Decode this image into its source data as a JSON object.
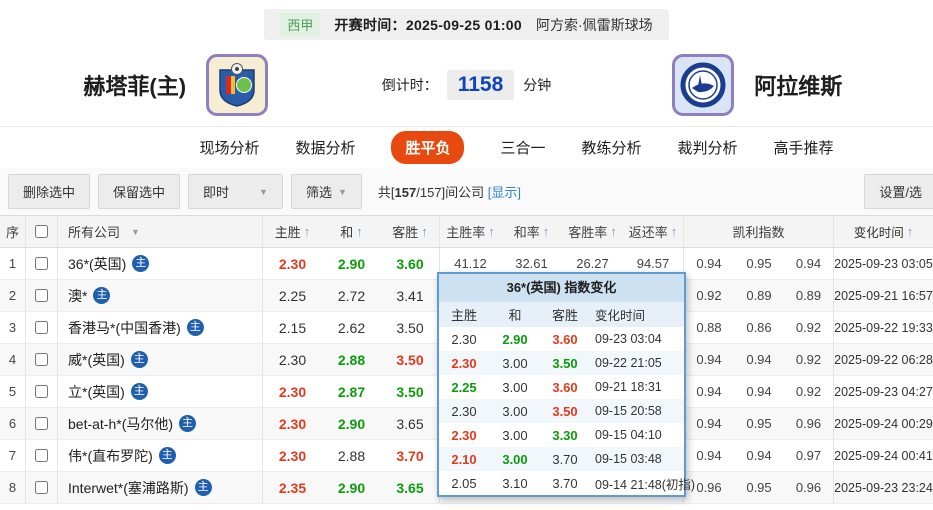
{
  "match_header": {
    "league": "西甲",
    "kickoff_label": "开赛时间：",
    "kickoff_time": "2025-09-25 01:00",
    "venue": "阿方索·佩雷斯球场",
    "home_team": "赫塔菲(主)",
    "away_team": "阿拉维斯",
    "countdown_label": "倒计时：",
    "countdown_value": "1158",
    "countdown_unit": "分钟"
  },
  "tabs": [
    {
      "label": "现场分析",
      "active": false
    },
    {
      "label": "数据分析",
      "active": false
    },
    {
      "label": "胜平负",
      "active": true
    },
    {
      "label": "三合一",
      "active": false
    },
    {
      "label": "教练分析",
      "active": false
    },
    {
      "label": "裁判分析",
      "active": false
    },
    {
      "label": "高手推荐",
      "active": false
    }
  ],
  "toolbar": {
    "delete_selected": "删除选中",
    "keep_selected": "保留选中",
    "live_dropdown": "即时",
    "filter_dropdown": "筛选",
    "count_prefix": "共[",
    "count_selected": "157",
    "count_suffix": "/157]间公司",
    "show_link": "[显示]",
    "settings_button": "设置/选"
  },
  "table": {
    "columns": {
      "index": "序",
      "company": "所有公司",
      "home": "主胜",
      "draw": "和",
      "away": "客胜",
      "home_rate": "主胜率",
      "draw_rate": "和率",
      "away_rate": "客胜率",
      "payout": "返还率",
      "kelly": "凯利指数",
      "time": "变化时间"
    },
    "badge_label": "主",
    "rows": [
      {
        "num": "1",
        "company": "36*(英国)",
        "odds": [
          {
            "v": "2.30",
            "c": "r"
          },
          {
            "v": "2.90",
            "c": "g"
          },
          {
            "v": "3.60",
            "c": "g"
          }
        ],
        "pcts": [
          "41.12",
          "32.61",
          "26.27",
          "94.57"
        ],
        "kelly": [
          "0.94",
          "0.95",
          "0.94"
        ],
        "time": "2025-09-23 03:05"
      },
      {
        "num": "2",
        "company": "澳*",
        "odds": [
          {
            "v": "2.25",
            "c": "k"
          },
          {
            "v": "2.72",
            "c": "k"
          },
          {
            "v": "3.41",
            "c": "k"
          }
        ],
        "pcts": [
          "",
          "",
          "",
          ""
        ],
        "kelly": [
          "0.92",
          "0.89",
          "0.89"
        ],
        "time": "2025-09-21 16:57"
      },
      {
        "num": "3",
        "company": "香港马*(中国香港)",
        "odds": [
          {
            "v": "2.15",
            "c": "k"
          },
          {
            "v": "2.62",
            "c": "k"
          },
          {
            "v": "3.50",
            "c": "k"
          }
        ],
        "pcts": [
          "",
          "",
          "",
          ""
        ],
        "kelly": [
          "0.88",
          "0.86",
          "0.92"
        ],
        "time": "2025-09-22 19:33"
      },
      {
        "num": "4",
        "company": "威*(英国)",
        "odds": [
          {
            "v": "2.30",
            "c": "k"
          },
          {
            "v": "2.88",
            "c": "g"
          },
          {
            "v": "3.50",
            "c": "r"
          }
        ],
        "pcts": [
          "",
          "",
          "",
          ""
        ],
        "kelly": [
          "0.94",
          "0.94",
          "0.92"
        ],
        "time": "2025-09-22 06:28"
      },
      {
        "num": "5",
        "company": "立*(英国)",
        "odds": [
          {
            "v": "2.30",
            "c": "r"
          },
          {
            "v": "2.87",
            "c": "g"
          },
          {
            "v": "3.50",
            "c": "g"
          }
        ],
        "pcts": [
          "",
          "",
          "",
          ""
        ],
        "kelly": [
          "0.94",
          "0.94",
          "0.92"
        ],
        "time": "2025-09-23 04:27"
      },
      {
        "num": "6",
        "company": "bet-at-h*(马尔他)",
        "odds": [
          {
            "v": "2.30",
            "c": "r"
          },
          {
            "v": "2.90",
            "c": "g"
          },
          {
            "v": "3.65",
            "c": "k"
          }
        ],
        "pcts": [
          "",
          "",
          "",
          ""
        ],
        "kelly": [
          "0.94",
          "0.95",
          "0.96"
        ],
        "time": "2025-09-24 00:29"
      },
      {
        "num": "7",
        "company": "伟*(直布罗陀)",
        "odds": [
          {
            "v": "2.30",
            "c": "r"
          },
          {
            "v": "2.88",
            "c": "k"
          },
          {
            "v": "3.70",
            "c": "r"
          }
        ],
        "pcts": [
          "",
          "",
          "",
          ""
        ],
        "kelly": [
          "0.94",
          "0.94",
          "0.97"
        ],
        "time": "2025-09-24 00:41"
      },
      {
        "num": "8",
        "company": "Interwet*(塞浦路斯)",
        "odds": [
          {
            "v": "2.35",
            "c": "r"
          },
          {
            "v": "2.90",
            "c": "g"
          },
          {
            "v": "3.65",
            "c": "g"
          }
        ],
        "pcts": [
          "",
          "",
          "",
          ""
        ],
        "kelly": [
          "0.96",
          "0.95",
          "0.96"
        ],
        "time": "2025-09-23 23:24"
      }
    ]
  },
  "popup": {
    "title": "36*(英国) 指数变化",
    "columns": {
      "home": "主胜",
      "draw": "和",
      "away": "客胜",
      "time": "变化时间"
    },
    "rows": [
      {
        "home": {
          "v": "2.30",
          "c": "k"
        },
        "draw": {
          "v": "2.90",
          "c": "g"
        },
        "away": {
          "v": "3.60",
          "c": "r"
        },
        "time": "09-23 03:04"
      },
      {
        "home": {
          "v": "2.30",
          "c": "r"
        },
        "draw": {
          "v": "3.00",
          "c": "k"
        },
        "away": {
          "v": "3.50",
          "c": "g"
        },
        "time": "09-22 21:05"
      },
      {
        "home": {
          "v": "2.25",
          "c": "g"
        },
        "draw": {
          "v": "3.00",
          "c": "k"
        },
        "away": {
          "v": "3.60",
          "c": "r"
        },
        "time": "09-21 18:31"
      },
      {
        "home": {
          "v": "2.30",
          "c": "k"
        },
        "draw": {
          "v": "3.00",
          "c": "k"
        },
        "away": {
          "v": "3.50",
          "c": "r"
        },
        "time": "09-15 20:58"
      },
      {
        "home": {
          "v": "2.30",
          "c": "r"
        },
        "draw": {
          "v": "3.00",
          "c": "k"
        },
        "away": {
          "v": "3.30",
          "c": "g"
        },
        "time": "09-15 04:10"
      },
      {
        "home": {
          "v": "2.10",
          "c": "r"
        },
        "draw": {
          "v": "3.00",
          "c": "g"
        },
        "away": {
          "v": "3.70",
          "c": "k"
        },
        "time": "09-15 03:48"
      },
      {
        "home": {
          "v": "2.05",
          "c": "k"
        },
        "draw": {
          "v": "3.10",
          "c": "k"
        },
        "away": {
          "v": "3.70",
          "c": "k"
        },
        "time": "09-14 21:48(初指)"
      }
    ]
  },
  "colors": {
    "odds_up_red": "#e23a1c",
    "odds_down_green": "#0a9d0a",
    "link_blue": "#2e82d0",
    "active_tab": "#e8490f",
    "company_badge_blue": "#1e5fae",
    "countdown_blue": "#1144bb",
    "league_green": "#4f9e52",
    "popup_border_blue": "#5d9bd3"
  }
}
